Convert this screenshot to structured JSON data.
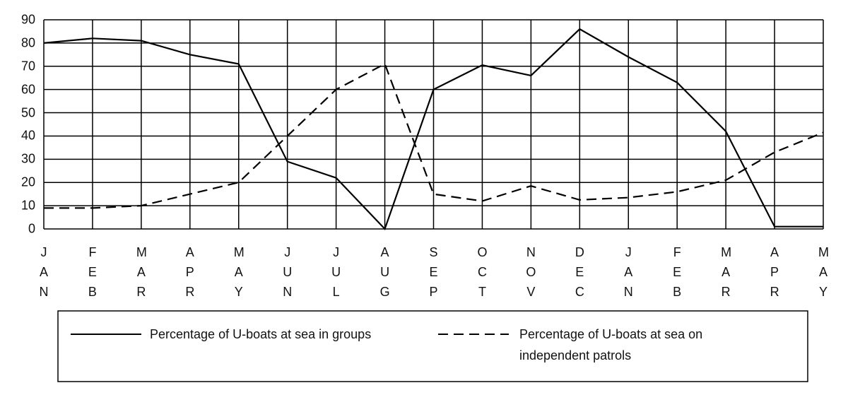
{
  "chart_data": {
    "type": "line",
    "categories": [
      "JAN",
      "FEB",
      "MAR",
      "APR",
      "MAY",
      "JUN",
      "JUL",
      "AUG",
      "SEP",
      "OCT",
      "NOV",
      "DEC",
      "JAN",
      "FEB",
      "MAR",
      "APR",
      "MAY"
    ],
    "series": [
      {
        "name": "Percentage of U-boats at sea in groups",
        "color": "#000000",
        "dashed": false,
        "values": [
          80,
          82,
          81,
          75,
          71,
          29,
          22,
          0,
          60,
          70.5,
          66,
          86,
          74,
          63,
          42,
          1,
          1
        ]
      },
      {
        "name": "Percentage of U-boats at sea on independent patrols",
        "color": "#000000",
        "dashed": true,
        "values": [
          9,
          9,
          10,
          15,
          20,
          40,
          60,
          71,
          15,
          12,
          18.5,
          12.5,
          13.5,
          16,
          21,
          33,
          41.5
        ]
      }
    ],
    "ylim": [
      0,
      90
    ],
    "yticks": [
      0,
      10,
      20,
      30,
      40,
      50,
      60,
      70,
      80,
      90
    ],
    "grid": true
  }
}
